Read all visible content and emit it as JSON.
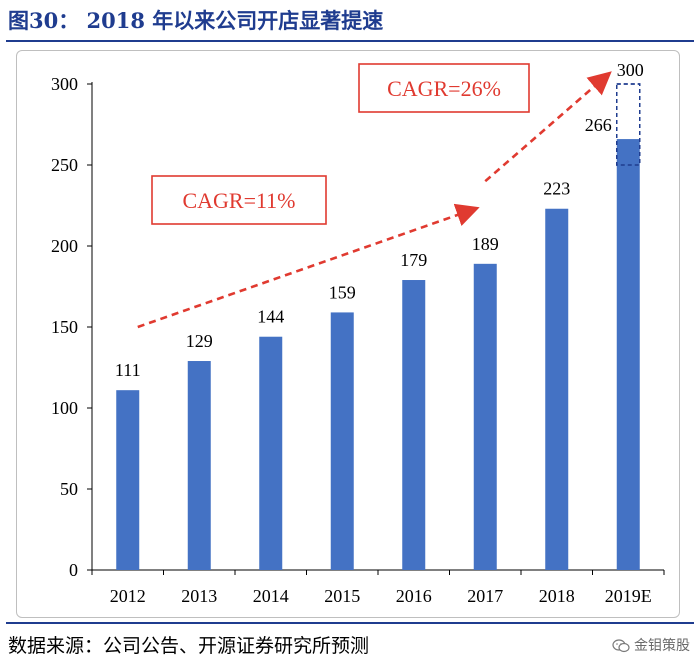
{
  "figure": {
    "title": "图30：  2018 年以来公司开店显著提速",
    "source": "数据来源：公司公告、开源证券研究所预测",
    "watermark": "金钼策股",
    "watermark_icon": "wechat-logo-icon"
  },
  "colors": {
    "bar": "#4472c4",
    "accent_red": "#e03a30",
    "title_blue": "#1f3c8f",
    "projection_border": "#1f3c8f"
  },
  "chart_data": {
    "type": "bar",
    "title": "",
    "xlabel": "",
    "ylabel": "",
    "categories": [
      "2012",
      "2013",
      "2014",
      "2015",
      "2016",
      "2017",
      "2018",
      "2019E"
    ],
    "values": [
      111,
      129,
      144,
      159,
      179,
      189,
      223,
      266
    ],
    "data_labels": [
      "111",
      "129",
      "144",
      "159",
      "179",
      "189",
      "223",
      "266"
    ],
    "projection": {
      "category": "2019E",
      "from": 266,
      "to": 300,
      "label": "300",
      "style": "dashed-outline"
    },
    "ylim": [
      0,
      300
    ],
    "yticks": [
      0,
      50,
      100,
      150,
      200,
      250,
      300
    ],
    "ytick_labels": [
      "0",
      "50",
      "100",
      "150",
      "200",
      "250",
      "300"
    ],
    "grid": false,
    "legend": "none",
    "annotations": [
      {
        "text": "CAGR=11%",
        "arrow_from": {
          "category": "2012",
          "value": 150
        },
        "arrow_to": {
          "category": "2017",
          "value": 223
        }
      },
      {
        "text": "CAGR=26%",
        "arrow_from": {
          "category": "2017",
          "value": 240
        },
        "arrow_to": {
          "category": "2019E",
          "value": 306
        }
      }
    ]
  }
}
